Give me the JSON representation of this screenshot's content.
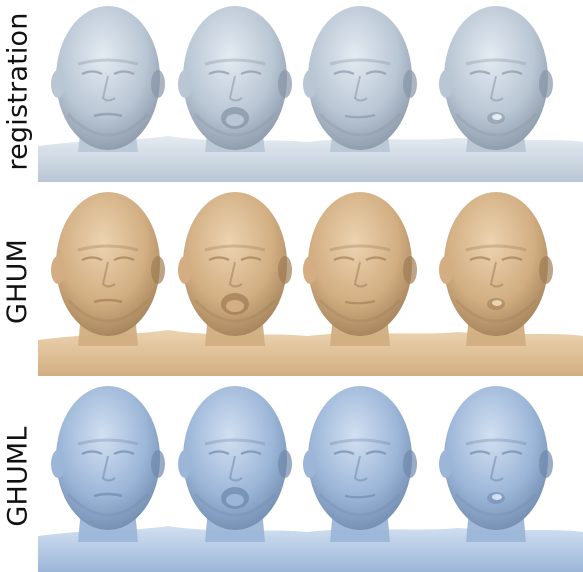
{
  "rows": [
    {
      "label": "registration",
      "shade": "#b9c6d4",
      "hi": "#e4ebf2",
      "lo": "#8795a6",
      "expressions": [
        "neutral-pursed",
        "mouth-open",
        "neutral",
        "lips-pursed"
      ]
    },
    {
      "label": "GHUM",
      "shade": "#d2ae82",
      "hi": "#ecd3b0",
      "lo": "#a07e56",
      "expressions": [
        "neutral-pursed",
        "mouth-open",
        "neutral",
        "lips-pursed"
      ]
    },
    {
      "label": "GHUML",
      "shade": "#9cb6d8",
      "hi": "#d2e0f1",
      "lo": "#6f89ad",
      "expressions": [
        "neutral-pursed",
        "mouth-open",
        "neutral",
        "lips-pursed"
      ]
    }
  ]
}
